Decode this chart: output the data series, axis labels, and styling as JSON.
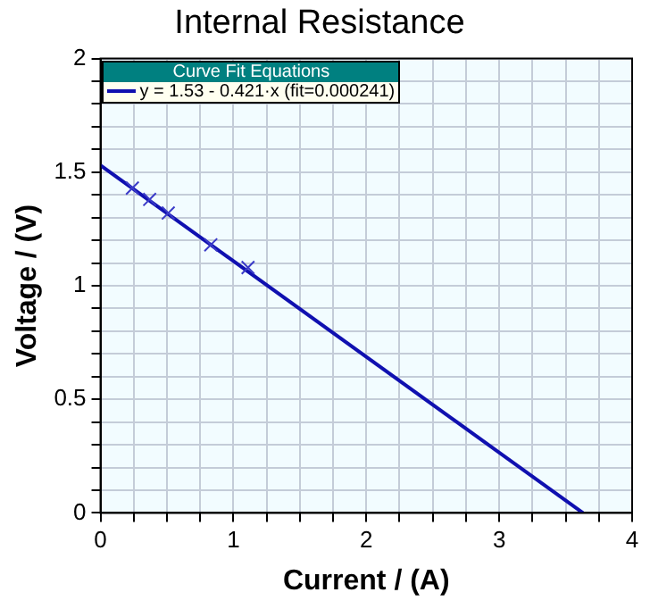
{
  "chart_data": {
    "type": "scatter",
    "title": "Internal Resistance",
    "xlabel": "Current / (A)",
    "ylabel": "Voltage / (V)",
    "legend_title": "Curve Fit Equations",
    "legend": "top left",
    "grid": true,
    "marker": "cross",
    "xlim": [
      0,
      4
    ],
    "ylim": [
      0,
      2
    ],
    "xticks": [
      0,
      {
        "value": 0.25,
        "label": null
      },
      {
        "value": 0.5,
        "label": null
      },
      {
        "value": 0.75,
        "label": null
      },
      1,
      {
        "value": 1.25,
        "label": null
      },
      {
        "value": 1.5,
        "label": null
      },
      {
        "value": 1.75,
        "label": null
      },
      2,
      {
        "value": 2.25,
        "label": null
      },
      {
        "value": 2.5,
        "label": null
      },
      {
        "value": 2.75,
        "label": null
      },
      3,
      {
        "value": 3.25,
        "label": null
      },
      {
        "value": 3.5,
        "label": null
      },
      {
        "value": 3.75,
        "label": null
      },
      4
    ],
    "yticks": [
      0,
      {
        "value": 0.1,
        "label": null
      },
      {
        "value": 0.2,
        "label": null
      },
      {
        "value": 0.3,
        "label": null
      },
      {
        "value": 0.4,
        "label": null
      },
      0.5,
      {
        "value": 0.6,
        "label": null
      },
      {
        "value": 0.7,
        "label": null
      },
      {
        "value": 0.8,
        "label": null
      },
      {
        "value": 0.9,
        "label": null
      },
      1,
      {
        "value": 1.1,
        "label": null
      },
      {
        "value": 1.2,
        "label": null
      },
      {
        "value": 1.3,
        "label": null
      },
      {
        "value": 1.4,
        "label": null
      },
      1.5,
      {
        "value": 1.6,
        "label": null
      },
      {
        "value": 1.7,
        "label": null
      },
      {
        "value": 1.8,
        "label": null
      },
      {
        "value": 1.9,
        "label": null
      },
      2
    ],
    "series": [
      {
        "color": "#3a3ac8",
        "x": [
          0.24,
          0.37,
          0.51,
          0.83,
          1.11
        ],
        "values": [
          1.43,
          1.38,
          1.32,
          1.18,
          1.08
        ]
      },
      {
        "type": "line",
        "name": "y = 1.53 - 0.421·x (fit=0.000241)",
        "color": "#1010b0",
        "marker": "none",
        "x": [
          0,
          3.63
        ],
        "values": [
          1.53,
          0
        ]
      }
    ]
  }
}
